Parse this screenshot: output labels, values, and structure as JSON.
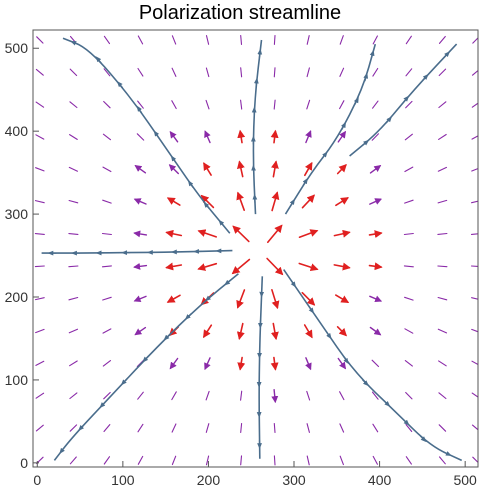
{
  "chart_data": {
    "type": "vector-field",
    "title": "Polarization streamline",
    "xlabel": "",
    "ylabel": "",
    "xlim": [
      -5,
      515
    ],
    "ylim": [
      -5,
      522
    ],
    "xticks": [
      0,
      100,
      200,
      300,
      400,
      500
    ],
    "yticks": [
      0,
      100,
      200,
      300,
      400,
      500
    ],
    "grid": false,
    "legend": "none",
    "field": {
      "description": "radial arrows pointing away from a central point",
      "center": [
        260,
        255
      ],
      "grid_spacing_x": 39.2,
      "grid_spacing_y": 39.0,
      "near_color": "#e02020",
      "far_color": "#8a2aa8",
      "dash_color": "#8a2aa8"
    },
    "streamlines": [
      {
        "points": [
          [
            225,
            277
          ],
          [
            190,
            320
          ],
          [
            150,
            380
          ],
          [
            110,
            440
          ],
          [
            60,
            500
          ],
          [
            30,
            512
          ]
        ],
        "color": "#4a6d8c"
      },
      {
        "points": [
          [
            255,
            300
          ],
          [
            252,
            370
          ],
          [
            254,
            440
          ],
          [
            262,
            510
          ]
        ],
        "color": "#4a6d8c"
      },
      {
        "points": [
          [
            290,
            300
          ],
          [
            320,
            350
          ],
          [
            350,
            390
          ],
          [
            380,
            450
          ],
          [
            395,
            505
          ]
        ],
        "color": "#4a6d8c"
      },
      {
        "points": [
          [
            365,
            370
          ],
          [
            400,
            400
          ],
          [
            440,
            450
          ],
          [
            490,
            505
          ]
        ],
        "color": "#4a6d8c"
      },
      {
        "points": [
          [
            228,
            256
          ],
          [
            150,
            254
          ],
          [
            60,
            253
          ],
          [
            5,
            253
          ]
        ],
        "color": "#4a6d8c"
      },
      {
        "points": [
          [
            235,
            228
          ],
          [
            190,
            190
          ],
          [
            140,
            140
          ],
          [
            90,
            85
          ],
          [
            40,
            30
          ],
          [
            20,
            3
          ]
        ],
        "color": "#4a6d8c"
      },
      {
        "points": [
          [
            263,
            225
          ],
          [
            260,
            150
          ],
          [
            259,
            80
          ],
          [
            260,
            5
          ]
        ],
        "color": "#4a6d8c"
      },
      {
        "points": [
          [
            288,
            233
          ],
          [
            330,
            170
          ],
          [
            370,
            110
          ],
          [
            420,
            60
          ],
          [
            460,
            20
          ],
          [
            496,
            3
          ]
        ],
        "color": "#4a6d8c"
      }
    ],
    "streamline_color": "#4a6d8c"
  }
}
